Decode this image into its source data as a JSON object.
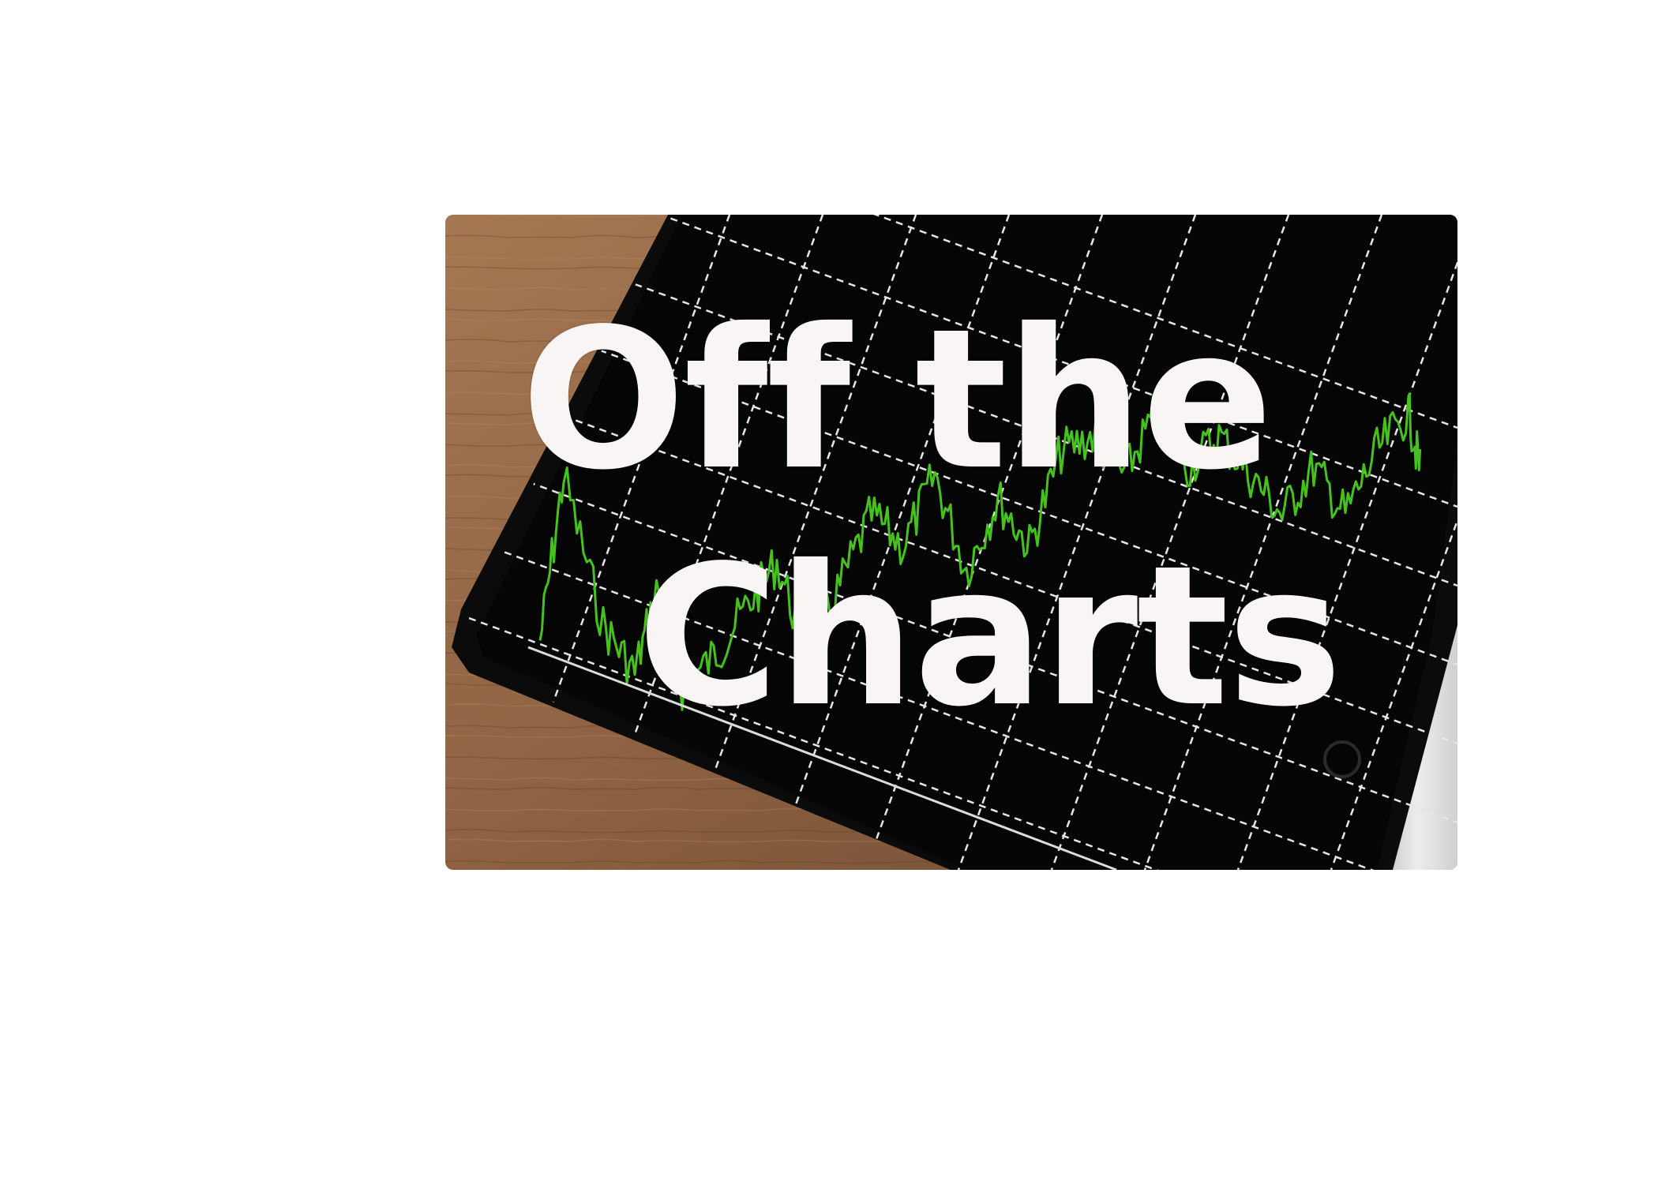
{
  "photo": {
    "description_icon": "tablet-stock-chart-photo",
    "colors": {
      "wood_light": "#9c6f4b",
      "wood_dark": "#6f4a30",
      "screen": "#050505",
      "bezel": "#101010",
      "grid": "#e8e8e8",
      "trace": "#45c21d",
      "tablet_edge": "#d9d9d9",
      "title_text": "#f9f5f5"
    }
  },
  "title": {
    "line1": "Off the",
    "line2": "Charts"
  }
}
